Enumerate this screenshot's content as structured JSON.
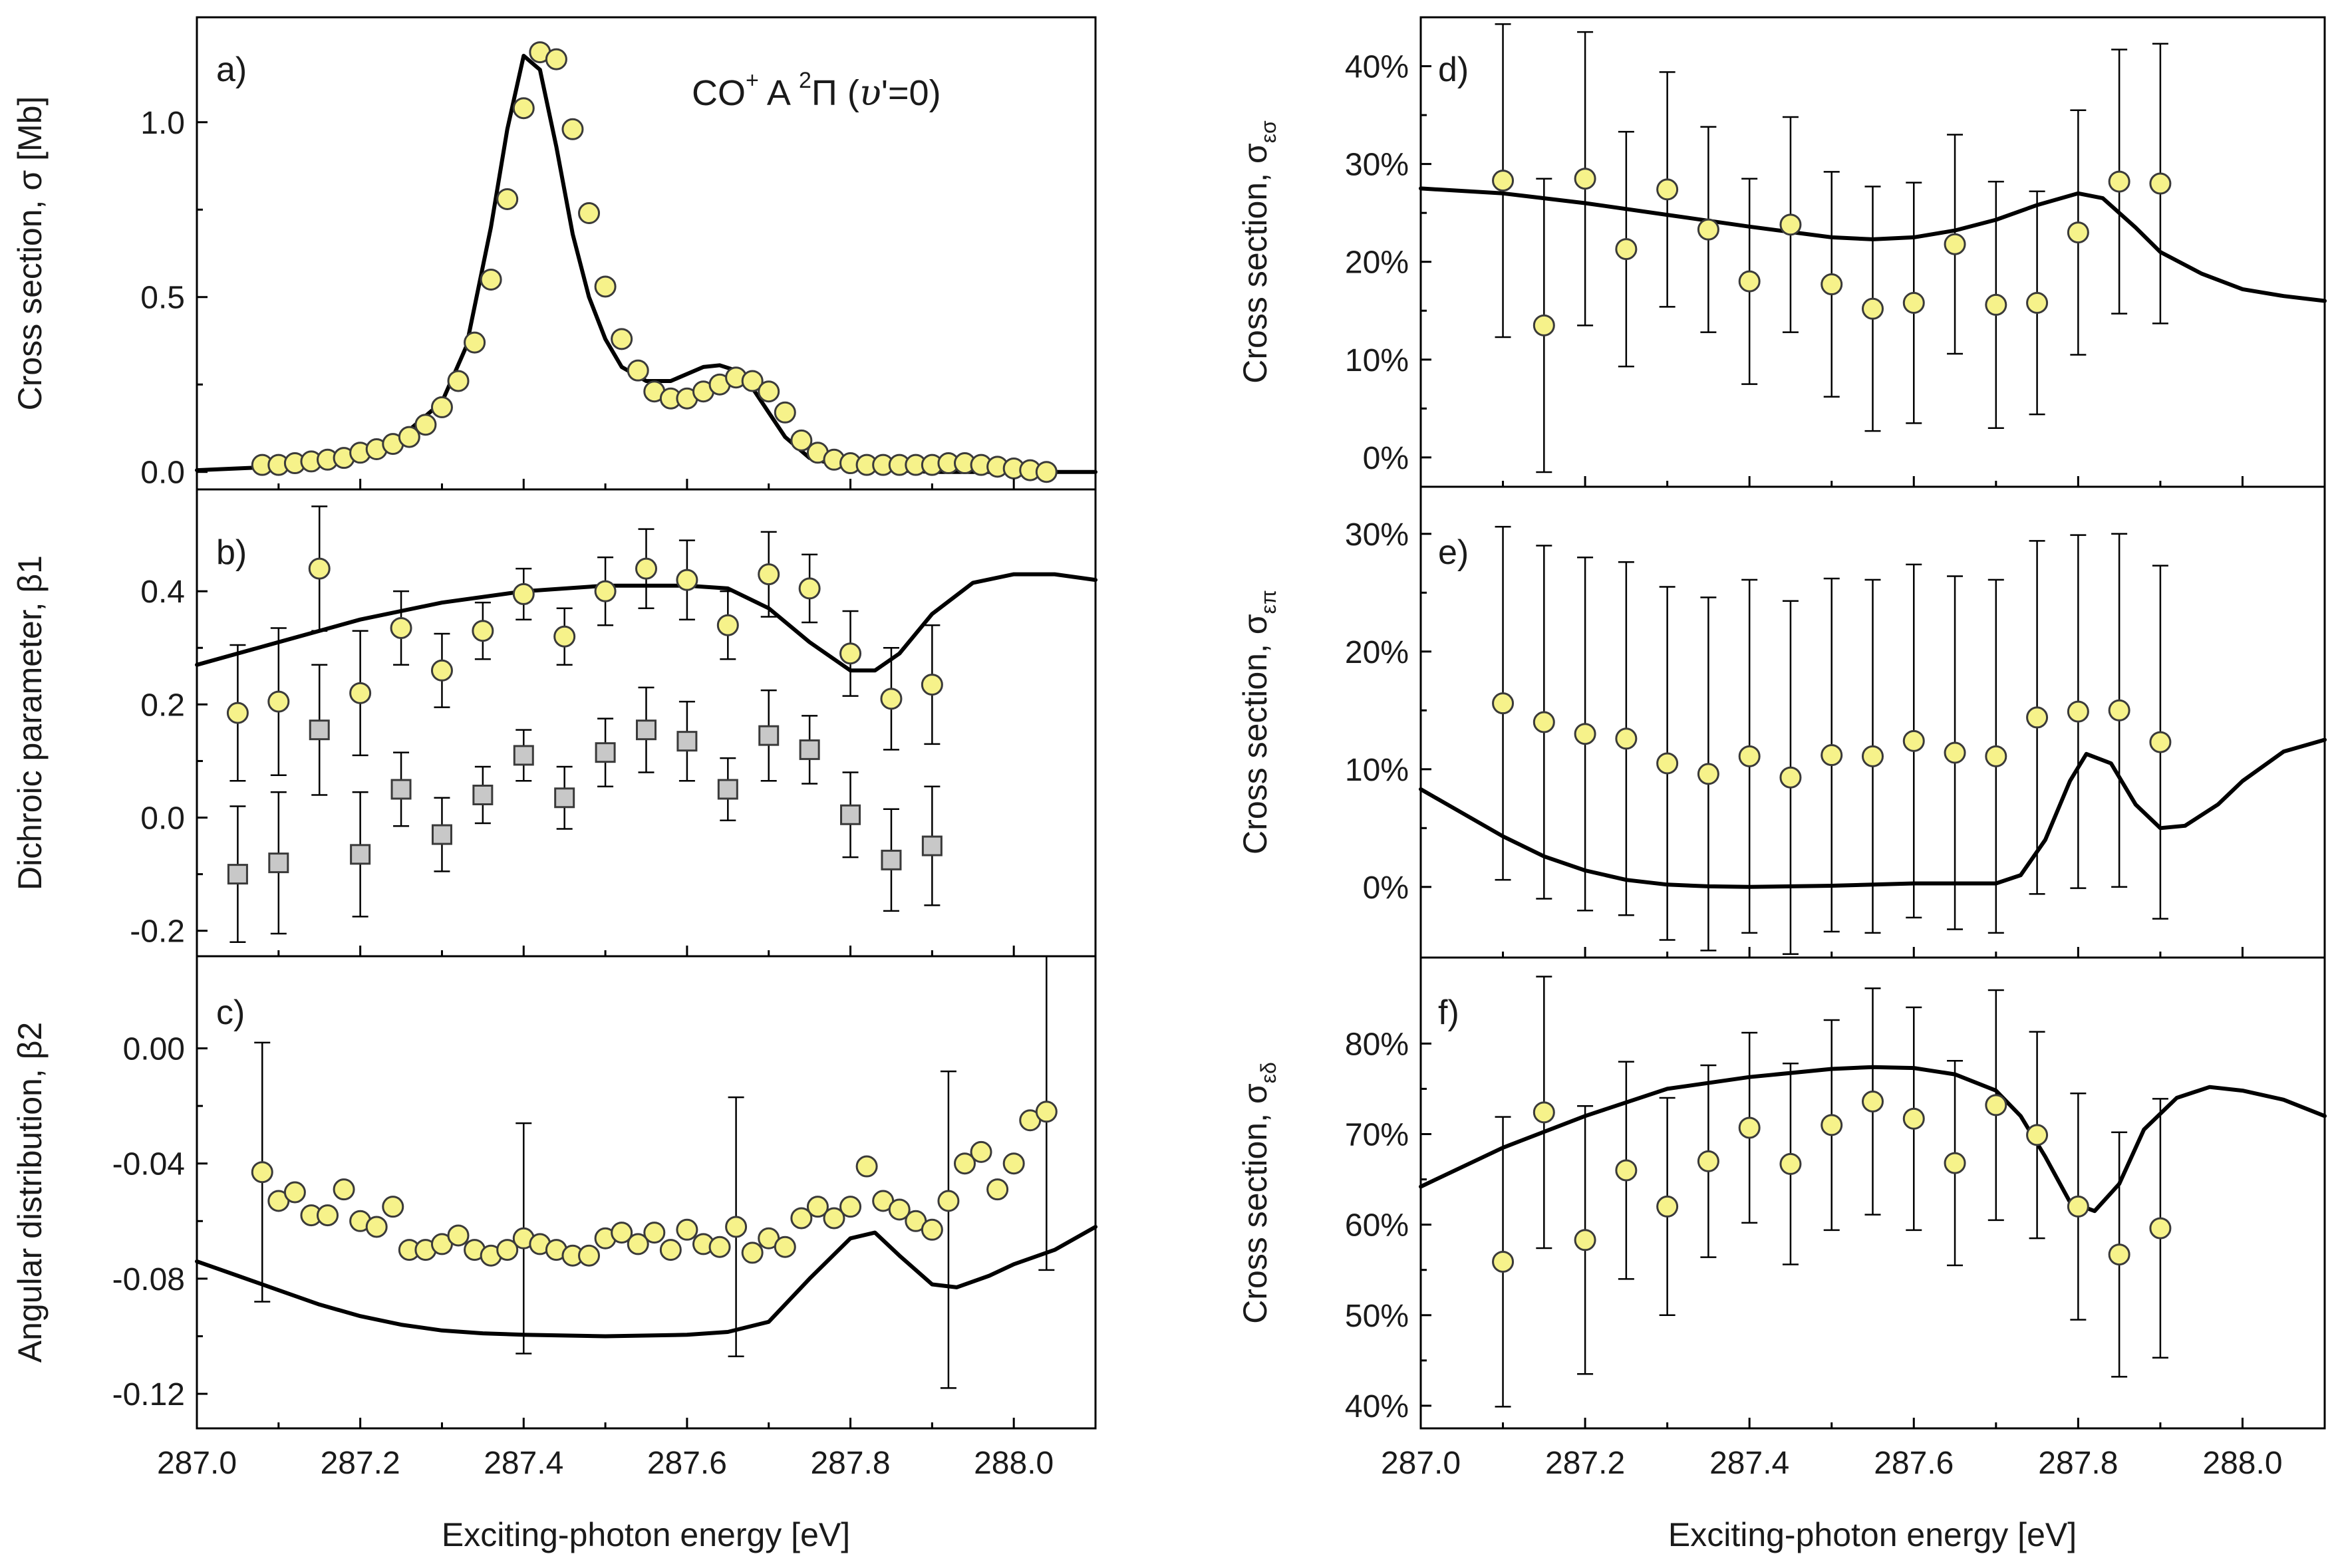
{
  "figure": {
    "xlabel": "Exciting-photon energy  [eV]",
    "colors": {
      "circle_fill": "#f6f28a",
      "square_fill": "#c8c8c8",
      "edge": "#3a3a3a",
      "line": "#000000"
    }
  },
  "chart_data": [
    {
      "id": "a",
      "panel_label": "a)",
      "type": "scatter",
      "annotation": {
        "prefix": "CO",
        "sup1": "+",
        "mid": " A ",
        "sup2": "2",
        "greek": "Π",
        "suffix": " (",
        "italic_v": "υ",
        "end": "'=0)"
      },
      "ylabel_text": "Cross section, σ [Mb]",
      "xlim": [
        287.0,
        288.1
      ],
      "ylim": [
        -0.05,
        1.3
      ],
      "yticks": [
        0.0,
        0.5,
        1.0
      ],
      "ytick_labels": [
        "0.0",
        "0.5",
        "1.0"
      ],
      "series": [
        {
          "name": "experiment",
          "marker": "circle",
          "x": [
            287.08,
            287.1,
            287.12,
            287.14,
            287.16,
            287.18,
            287.2,
            287.22,
            287.24,
            287.26,
            287.28,
            287.3,
            287.32,
            287.34,
            287.36,
            287.38,
            287.4,
            287.42,
            287.44,
            287.46,
            287.48,
            287.5,
            287.52,
            287.54,
            287.56,
            287.58,
            287.6,
            287.62,
            287.64,
            287.66,
            287.68,
            287.7,
            287.72,
            287.74,
            287.76,
            287.78,
            287.8,
            287.82,
            287.84,
            287.86,
            287.88,
            287.9,
            287.92,
            287.94,
            287.96,
            287.98,
            288.0,
            288.02,
            288.04
          ],
          "y": [
            0.02,
            0.02,
            0.025,
            0.03,
            0.035,
            0.04,
            0.055,
            0.065,
            0.08,
            0.1,
            0.135,
            0.185,
            0.26,
            0.37,
            0.55,
            0.78,
            1.04,
            1.2,
            1.18,
            0.98,
            0.74,
            0.53,
            0.38,
            0.29,
            0.23,
            0.21,
            0.21,
            0.23,
            0.25,
            0.27,
            0.26,
            0.23,
            0.17,
            0.09,
            0.055,
            0.035,
            0.025,
            0.02,
            0.02,
            0.02,
            0.02,
            0.02,
            0.025,
            0.025,
            0.02,
            0.015,
            0.01,
            0.005,
            0.0
          ]
        },
        {
          "name": "theory",
          "marker": "line",
          "x": [
            287.0,
            287.1,
            287.2,
            287.25,
            287.3,
            287.33,
            287.36,
            287.38,
            287.4,
            287.42,
            287.44,
            287.46,
            287.48,
            287.5,
            287.52,
            287.55,
            287.58,
            287.62,
            287.64,
            287.66,
            287.68,
            287.7,
            287.72,
            287.75,
            287.8,
            287.9,
            288.0,
            288.1
          ],
          "y": [
            0.005,
            0.015,
            0.05,
            0.1,
            0.2,
            0.36,
            0.7,
            0.98,
            1.19,
            1.15,
            0.93,
            0.68,
            0.5,
            0.38,
            0.3,
            0.26,
            0.26,
            0.3,
            0.305,
            0.29,
            0.24,
            0.17,
            0.1,
            0.04,
            0.01,
            0.0,
            0.0,
            0.0
          ]
        }
      ]
    },
    {
      "id": "b",
      "panel_label": "b)",
      "type": "scatter",
      "ylabel_text": "Dichroic parameter, β1",
      "xlim": [
        287.0,
        288.1
      ],
      "ylim": [
        -0.245,
        0.58
      ],
      "yticks": [
        -0.2,
        0.0,
        0.2,
        0.4
      ],
      "ytick_labels": [
        "-0.2",
        "0.0",
        "0.2",
        "0.4"
      ],
      "series": [
        {
          "name": "circles",
          "marker": "circle",
          "x": [
            287.05,
            287.1,
            287.15,
            287.2,
            287.25,
            287.3,
            287.35,
            287.4,
            287.45,
            287.5,
            287.55,
            287.6,
            287.65,
            287.7,
            287.75,
            287.8,
            287.85,
            287.9
          ],
          "y": [
            0.185,
            0.205,
            0.44,
            0.22,
            0.335,
            0.26,
            0.33,
            0.395,
            0.32,
            0.4,
            0.44,
            0.42,
            0.34,
            0.43,
            0.405,
            0.29,
            0.21,
            0.235
          ],
          "err": [
            0.12,
            0.13,
            0.11,
            0.11,
            0.065,
            0.065,
            0.05,
            0.045,
            0.05,
            0.06,
            0.07,
            0.07,
            0.06,
            0.075,
            0.06,
            0.075,
            0.09,
            0.105
          ]
        },
        {
          "name": "squares",
          "marker": "square",
          "x": [
            287.05,
            287.1,
            287.15,
            287.2,
            287.25,
            287.3,
            287.35,
            287.4,
            287.45,
            287.5,
            287.55,
            287.6,
            287.65,
            287.7,
            287.75,
            287.8,
            287.85,
            287.9
          ],
          "y": [
            -0.1,
            -0.08,
            0.155,
            -0.065,
            0.05,
            -0.03,
            0.04,
            0.11,
            0.035,
            0.115,
            0.155,
            0.135,
            0.05,
            0.145,
            0.12,
            0.005,
            -0.075,
            -0.05
          ],
          "err": [
            0.12,
            0.125,
            0.115,
            0.11,
            0.065,
            0.065,
            0.05,
            0.045,
            0.055,
            0.06,
            0.075,
            0.07,
            0.055,
            0.08,
            0.06,
            0.075,
            0.09,
            0.105
          ]
        },
        {
          "name": "theory",
          "marker": "line",
          "x": [
            287.0,
            287.1,
            287.2,
            287.3,
            287.4,
            287.5,
            287.6,
            287.65,
            287.7,
            287.75,
            287.8,
            287.83,
            287.86,
            287.9,
            287.95,
            288.0,
            288.05,
            288.1
          ],
          "y": [
            0.27,
            0.31,
            0.35,
            0.38,
            0.4,
            0.41,
            0.41,
            0.405,
            0.37,
            0.31,
            0.26,
            0.26,
            0.29,
            0.36,
            0.415,
            0.43,
            0.43,
            0.42
          ]
        }
      ]
    },
    {
      "id": "c",
      "panel_label": "c)",
      "type": "scatter",
      "ylabel_text": "Angular distribution, β2",
      "xlim": [
        287.0,
        288.1
      ],
      "ylim": [
        -0.132,
        0.032
      ],
      "yticks": [
        -0.12,
        -0.08,
        -0.04,
        0.0
      ],
      "ytick_labels": [
        "-0.12",
        "-0.08",
        "-0.04",
        "0.00"
      ],
      "series": [
        {
          "name": "circles",
          "marker": "circle",
          "x": [
            287.08,
            287.1,
            287.12,
            287.14,
            287.16,
            287.18,
            287.2,
            287.22,
            287.24,
            287.26,
            287.28,
            287.3,
            287.32,
            287.34,
            287.36,
            287.38,
            287.4,
            287.42,
            287.44,
            287.46,
            287.48,
            287.5,
            287.52,
            287.54,
            287.56,
            287.58,
            287.6,
            287.62,
            287.64,
            287.66,
            287.68,
            287.7,
            287.72,
            287.74,
            287.76,
            287.78,
            287.8,
            287.82,
            287.84,
            287.86,
            287.88,
            287.9,
            287.92,
            287.94,
            287.96,
            287.98,
            288.0,
            288.02,
            288.04
          ],
          "y": [
            -0.043,
            -0.053,
            -0.05,
            -0.058,
            -0.058,
            -0.049,
            -0.06,
            -0.062,
            -0.055,
            -0.07,
            -0.07,
            -0.068,
            -0.065,
            -0.07,
            -0.072,
            -0.07,
            -0.066,
            -0.068,
            -0.07,
            -0.072,
            -0.072,
            -0.066,
            -0.064,
            -0.068,
            -0.064,
            -0.07,
            -0.063,
            -0.068,
            -0.069,
            -0.062,
            -0.071,
            -0.066,
            -0.069,
            -0.059,
            -0.055,
            -0.059,
            -0.055,
            -0.041,
            -0.053,
            -0.056,
            -0.06,
            -0.063,
            -0.053,
            -0.04,
            -0.036,
            -0.049,
            -0.04,
            -0.025,
            -0.022
          ]
        },
        {
          "name": "error_bars",
          "marker": "errorbar",
          "x": [
            287.08,
            287.4,
            287.66,
            287.92,
            288.04
          ],
          "low": [
            -0.088,
            -0.106,
            -0.107,
            -0.118,
            -0.077
          ],
          "high": [
            0.002,
            -0.026,
            -0.017,
            -0.008,
            0.032
          ]
        },
        {
          "name": "theory",
          "marker": "line",
          "x": [
            287.0,
            287.05,
            287.1,
            287.15,
            287.2,
            287.25,
            287.3,
            287.35,
            287.4,
            287.5,
            287.6,
            287.65,
            287.7,
            287.75,
            287.8,
            287.83,
            287.86,
            287.9,
            287.93,
            287.97,
            288.0,
            288.05,
            288.1
          ],
          "y": [
            -0.074,
            -0.079,
            -0.084,
            -0.089,
            -0.093,
            -0.096,
            -0.098,
            -0.099,
            -0.0995,
            -0.1,
            -0.0995,
            -0.0985,
            -0.095,
            -0.08,
            -0.066,
            -0.064,
            -0.072,
            -0.082,
            -0.083,
            -0.079,
            -0.075,
            -0.07,
            -0.062
          ]
        }
      ]
    },
    {
      "id": "d",
      "panel_label": "d)",
      "type": "scatter",
      "ylabel_text": "Cross section, σ",
      "ylabel_sub": "εσ",
      "xlim": [
        287.0,
        288.1
      ],
      "ylim": [
        -3,
        45
      ],
      "yticks": [
        0,
        10,
        20,
        30,
        40
      ],
      "ytick_labels": [
        "0%",
        "10%",
        "20%",
        "30%",
        "40%"
      ],
      "series": [
        {
          "name": "experiment",
          "marker": "circle",
          "x": [
            287.1,
            287.15,
            287.2,
            287.25,
            287.3,
            287.35,
            287.4,
            287.45,
            287.5,
            287.55,
            287.6,
            287.65,
            287.7,
            287.75,
            287.8,
            287.85,
            287.9
          ],
          "y": [
            28.3,
            13.5,
            28.5,
            21.3,
            27.4,
            23.3,
            18.0,
            23.8,
            17.7,
            15.2,
            15.8,
            21.8,
            15.6,
            15.8,
            23.0,
            28.2,
            28.0
          ],
          "err": [
            16,
            15,
            15,
            12,
            12,
            10.5,
            10.5,
            11,
            11.5,
            12.5,
            12.3,
            11.2,
            12.6,
            11.4,
            12.5,
            13.5,
            14.3
          ]
        },
        {
          "name": "theory",
          "marker": "line",
          "x": [
            287.0,
            287.1,
            287.2,
            287.3,
            287.4,
            287.5,
            287.55,
            287.6,
            287.65,
            287.7,
            287.75,
            287.8,
            287.83,
            287.87,
            287.9,
            287.95,
            288.0,
            288.05,
            288.1
          ],
          "y": [
            27.5,
            27.0,
            26.0,
            24.8,
            23.6,
            22.5,
            22.3,
            22.5,
            23.2,
            24.3,
            25.8,
            27.0,
            26.5,
            23.5,
            21.0,
            18.8,
            17.2,
            16.5,
            16.0
          ]
        }
      ]
    },
    {
      "id": "e",
      "panel_label": "e)",
      "type": "scatter",
      "ylabel_text": "Cross section, σ",
      "ylabel_sub": "επ",
      "xlim": [
        287.0,
        288.1
      ],
      "ylim": [
        -6,
        34
      ],
      "yticks": [
        0,
        10,
        20,
        30
      ],
      "ytick_labels": [
        "0%",
        "10%",
        "20%",
        "30%"
      ],
      "series": [
        {
          "name": "experiment",
          "marker": "circle",
          "x": [
            287.1,
            287.15,
            287.2,
            287.25,
            287.3,
            287.35,
            287.4,
            287.45,
            287.5,
            287.55,
            287.6,
            287.65,
            287.7,
            287.75,
            287.8,
            287.85,
            287.9
          ],
          "y": [
            15.6,
            14.0,
            13.0,
            12.6,
            10.5,
            9.6,
            11.1,
            9.3,
            11.2,
            11.1,
            12.4,
            11.4,
            11.1,
            14.4,
            14.9,
            15.0,
            12.3
          ],
          "err": [
            15,
            15,
            15,
            15,
            15,
            15,
            15,
            15,
            15,
            15,
            15,
            15,
            15,
            15,
            15,
            15,
            15
          ]
        },
        {
          "name": "theory",
          "marker": "line",
          "x": [
            287.0,
            287.05,
            287.1,
            287.15,
            287.2,
            287.25,
            287.3,
            287.35,
            287.4,
            287.5,
            287.6,
            287.65,
            287.7,
            287.73,
            287.76,
            287.79,
            287.81,
            287.84,
            287.87,
            287.9,
            287.93,
            287.97,
            288.0,
            288.05,
            288.1
          ],
          "y": [
            8.3,
            6.3,
            4.3,
            2.6,
            1.4,
            0.6,
            0.2,
            0.05,
            0.0,
            0.1,
            0.3,
            0.3,
            0.3,
            1.0,
            4.0,
            9.0,
            11.3,
            10.5,
            7.0,
            5.0,
            5.2,
            7.0,
            9.0,
            11.5,
            12.5
          ]
        }
      ]
    },
    {
      "id": "f",
      "panel_label": "f)",
      "type": "scatter",
      "ylabel_text": "Cross section, σ",
      "ylabel_sub": "εδ",
      "xlim": [
        287.0,
        288.1
      ],
      "ylim": [
        37.5,
        89.5
      ],
      "yticks": [
        40,
        50,
        60,
        70,
        80
      ],
      "ytick_labels": [
        "40%",
        "50%",
        "60%",
        "70%",
        "80%"
      ],
      "series": [
        {
          "name": "experiment",
          "marker": "circle",
          "x": [
            287.1,
            287.15,
            287.2,
            287.25,
            287.3,
            287.35,
            287.4,
            287.45,
            287.5,
            287.55,
            287.6,
            287.65,
            287.7,
            287.75,
            287.8,
            287.85,
            287.9
          ],
          "y": [
            55.9,
            72.4,
            58.3,
            66.0,
            62.0,
            67.0,
            70.7,
            66.7,
            71.0,
            73.6,
            71.7,
            66.8,
            73.2,
            69.9,
            62.0,
            56.7,
            59.6
          ],
          "err": [
            16,
            15,
            14.8,
            12,
            12,
            10.6,
            10.5,
            11.1,
            11.6,
            12.5,
            12.3,
            11.3,
            12.7,
            11.4,
            12.5,
            13.5,
            14.3
          ]
        },
        {
          "name": "theory",
          "marker": "line",
          "x": [
            287.0,
            287.1,
            287.2,
            287.3,
            287.4,
            287.5,
            287.55,
            287.6,
            287.65,
            287.7,
            287.73,
            287.76,
            287.79,
            287.82,
            287.85,
            287.88,
            287.92,
            287.96,
            288.0,
            288.05,
            288.1
          ],
          "y": [
            64.2,
            68.5,
            72.0,
            75.0,
            76.3,
            77.2,
            77.4,
            77.3,
            76.6,
            74.8,
            72.0,
            67.5,
            62.5,
            61.5,
            64.5,
            70.5,
            74.0,
            75.2,
            74.8,
            73.8,
            72.0
          ]
        }
      ]
    }
  ]
}
